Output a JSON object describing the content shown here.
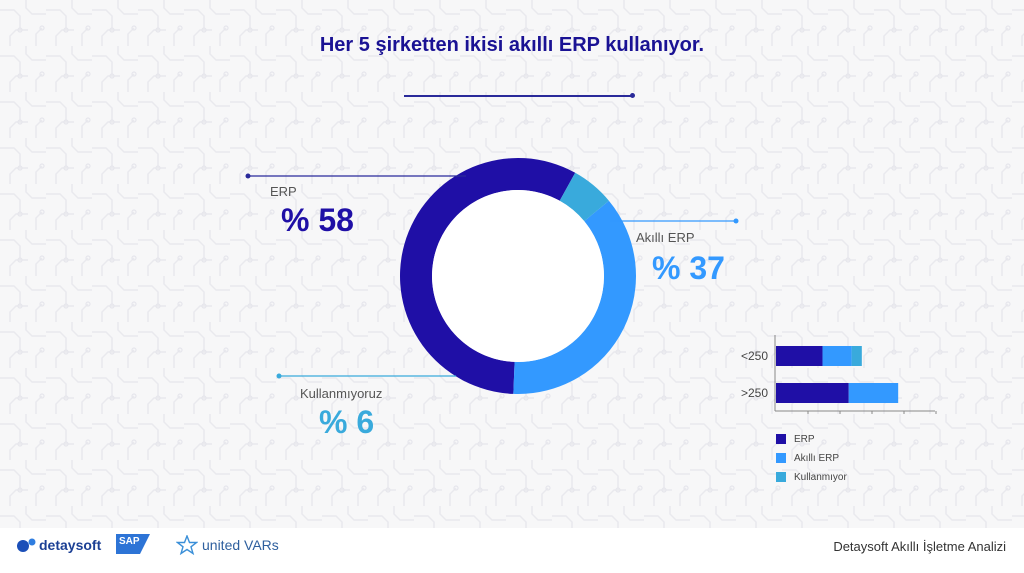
{
  "title": "Her 5 şirketten ikisi akıllı ERP kullanıyor.",
  "colors": {
    "erp": "#1f0fa6",
    "akilli_erp": "#3399ff",
    "kullanmiyoruz": "#39aadc",
    "title": "#1a1294",
    "background": "#f7f7f8"
  },
  "chart_data": [
    {
      "type": "pie",
      "subtype": "donut",
      "slices": [
        {
          "label": "ERP",
          "value": 58,
          "display": "% 58",
          "color": "#1f0fa6"
        },
        {
          "label": "Akıllı ERP",
          "value": 37,
          "display": "% 37",
          "color": "#3399ff"
        },
        {
          "label": "Kullanmıyoruz",
          "value": 6,
          "display": "% 6",
          "color": "#39aadc"
        }
      ]
    },
    {
      "type": "bar",
      "orientation": "horizontal",
      "stacked": true,
      "categories": [
        "<250",
        ">250"
      ],
      "series": [
        {
          "name": "ERP",
          "values": [
            32,
            50
          ],
          "color": "#1f0fa6"
        },
        {
          "name": "Akıllı ERP",
          "values": [
            20,
            34
          ],
          "color": "#3399ff"
        },
        {
          "name": "Kullanmıyor",
          "values": [
            7,
            0
          ],
          "color": "#39aadc"
        }
      ],
      "xlim": [
        0,
        110
      ],
      "legend_position": "bottom"
    }
  ],
  "footer": {
    "logos": [
      "detaysoft",
      "SAP",
      "united VARs"
    ],
    "right_text": "Detaysoft Akıllı İşletme Analizi"
  }
}
